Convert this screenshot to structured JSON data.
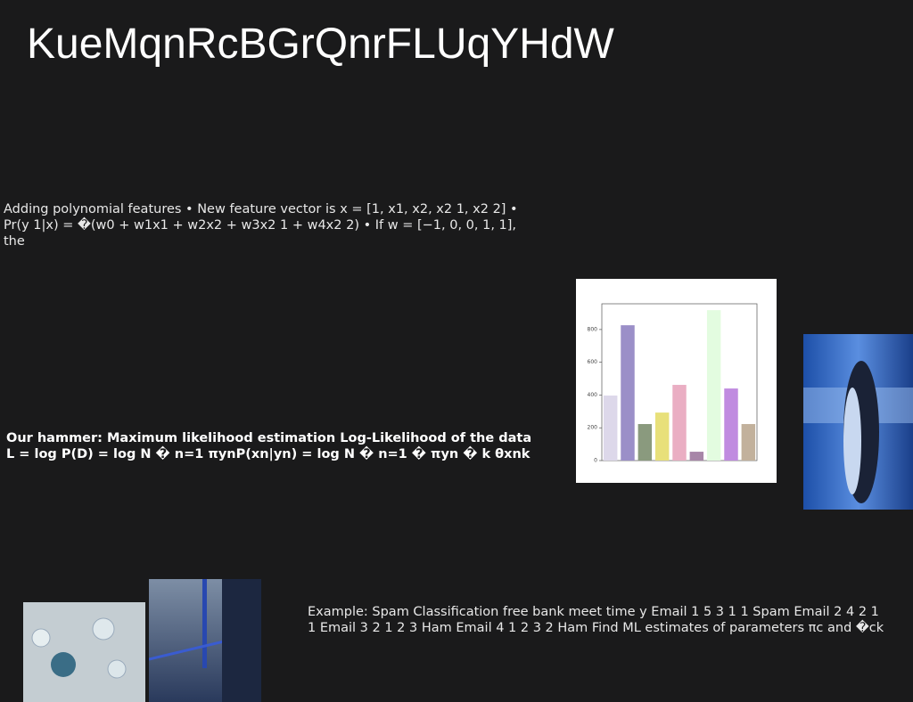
{
  "title": "KueMqnRcBGrQnrFLUqYHdW",
  "paragraph": "Adding polynomial features • New feature vector is x = [1, x1, x2, x2 1, x2 2] • Pr(y 1|x) = �(w0 + w1x1 + w2x2 + w3x2 1 + w4x2 2) • If w = [−1, 0, 0, 1, 1], the",
  "bold_text": "Our hammer: Maximum likelihood estimation Log-Likelihood of the data L = log P(D) = log N � n=1 πynP(xn|yn) = log N � n=1 � πyn � k θxnk",
  "example": "Example: Spam Classification free bank meet time y Email 1 5 3 1 1 Spam Email 2 4 2 1 1 Email 3 2 1 2 3 Ham Email 4 1 2 3 2 Ham Find ML estimates of parameters πc and �ck",
  "chart_data": {
    "type": "bar",
    "categories": [
      null,
      null,
      null,
      null,
      null,
      null,
      null,
      null,
      null
    ],
    "values": [
      397,
      826,
      223,
      293,
      462,
      54,
      918,
      440,
      223
    ],
    "colors": [
      "#ddd8ea",
      "#9b8fc8",
      "#8a9a7e",
      "#e8e07a",
      "#eaaec3",
      "#a786a8",
      "#e3fce0",
      "#c08be0",
      "#c2b19c"
    ],
    "ylim": [
      0,
      957
    ],
    "yticks": [
      0,
      200,
      400,
      600,
      800
    ]
  }
}
